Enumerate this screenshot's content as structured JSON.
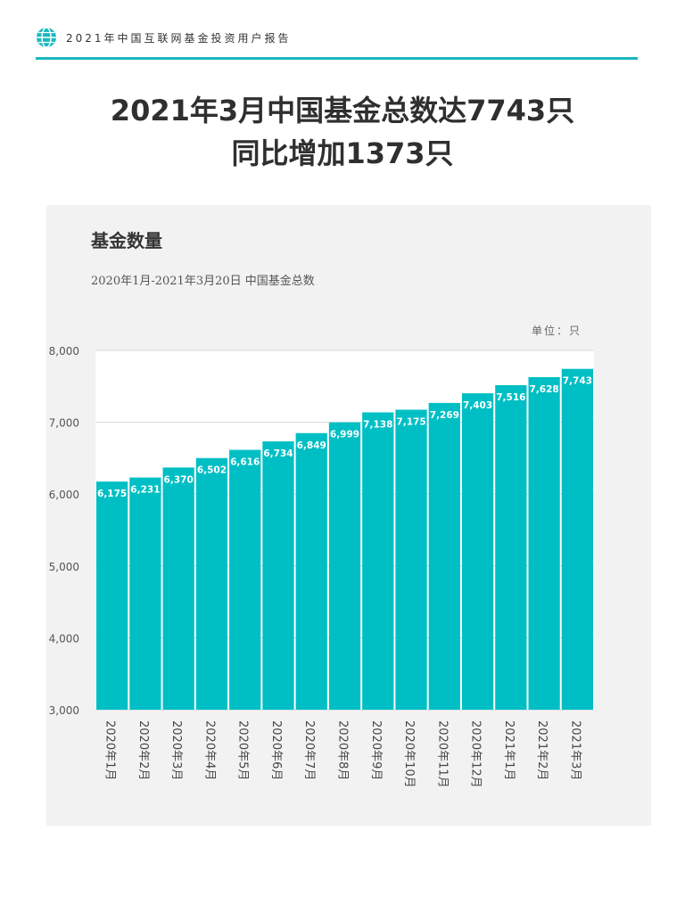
{
  "header": {
    "title": "2021年中国互联网基金投资用户报告",
    "icon": "globe-icon",
    "accent_color": "#1ab8be"
  },
  "main_title": {
    "line1": "2021年3月中国基金总数达7743只",
    "line2": "同比增加1373只"
  },
  "chart_data": {
    "type": "bar",
    "title": "基金数量",
    "subtitle": "2020年1月-2021年3月20日 中国基金总数",
    "unit": "单位：只",
    "categories": [
      "2020年1月",
      "2020年2月",
      "2020年3月",
      "2020年4月",
      "2020年5月",
      "2020年6月",
      "2020年7月",
      "2020年8月",
      "2020年9月",
      "2020年10月",
      "2020年11月",
      "2020年12月",
      "2021年1月",
      "2021年2月",
      "2021年3月"
    ],
    "values": [
      6175,
      6231,
      6370,
      6502,
      6616,
      6734,
      6849,
      6999,
      7138,
      7175,
      7269,
      7403,
      7516,
      7628,
      7743
    ],
    "value_labels": [
      "6,175",
      "6,231",
      "6,370",
      "6,502",
      "6,616",
      "6,734",
      "6,849",
      "6,999",
      "7,138",
      "7,175",
      "7,269",
      "7,403",
      "7,516",
      "7,628",
      "7,743"
    ],
    "y_ticks": [
      "3,000",
      "4,000",
      "5,000",
      "6,000",
      "7,000",
      "8,000"
    ],
    "ylim": [
      3000,
      8000
    ],
    "bar_color": "#00bfc4",
    "grid": true,
    "legend": "none"
  }
}
